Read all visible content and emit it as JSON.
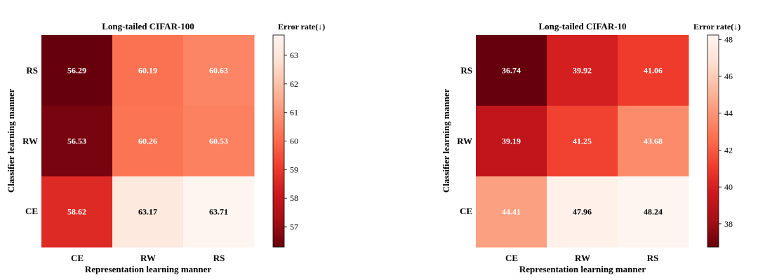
{
  "chart_data": [
    {
      "type": "heatmap",
      "title": "Long-tailed CIFAR-100",
      "xlabel": "Representation learning manner",
      "ylabel": "Classifier learning manner",
      "x_categories": [
        "CE",
        "RW",
        "RS"
      ],
      "y_categories": [
        "RS",
        "RW",
        "CE"
      ],
      "values": [
        [
          56.29,
          60.19,
          60.63
        ],
        [
          56.53,
          60.26,
          60.53
        ],
        [
          58.62,
          63.17,
          63.71
        ]
      ],
      "cell_labels": [
        [
          "56.29",
          "60.19",
          "60.63"
        ],
        [
          "56.53",
          "60.26",
          "60.53"
        ],
        [
          "58.62",
          "63.17",
          "63.71"
        ]
      ],
      "colormap": "Reds_r",
      "colorbar_label": "Error rate(↓)",
      "colorbar_range": [
        56.29,
        63.71
      ],
      "colorbar_ticks": [
        57,
        58,
        59,
        60,
        61,
        62,
        63
      ],
      "colorbar_tick_labels": [
        "57",
        "58",
        "59",
        "60",
        "61",
        "62",
        "63"
      ]
    },
    {
      "type": "heatmap",
      "title": "Long-tailed CIFAR-10",
      "xlabel": "Representation learning manner",
      "ylabel": "Classifier learning manner",
      "x_categories": [
        "CE",
        "RW",
        "RS"
      ],
      "y_categories": [
        "RS",
        "RW",
        "CE"
      ],
      "values": [
        [
          36.74,
          39.92,
          41.06
        ],
        [
          39.19,
          41.25,
          43.68
        ],
        [
          44.41,
          47.96,
          48.24
        ]
      ],
      "cell_labels": [
        [
          "36.74",
          "39.92",
          "41.06"
        ],
        [
          "39.19",
          "41.25",
          "43.68"
        ],
        [
          "44.41",
          "47.96",
          "48.24"
        ]
      ],
      "colormap": "Reds_r",
      "colorbar_label": "Error rate(↓)",
      "colorbar_range": [
        36.74,
        48.24
      ],
      "colorbar_ticks": [
        38,
        40,
        42,
        44,
        46,
        48
      ],
      "colorbar_tick_labels": [
        "38",
        "40",
        "42",
        "44",
        "46",
        "48"
      ]
    }
  ]
}
